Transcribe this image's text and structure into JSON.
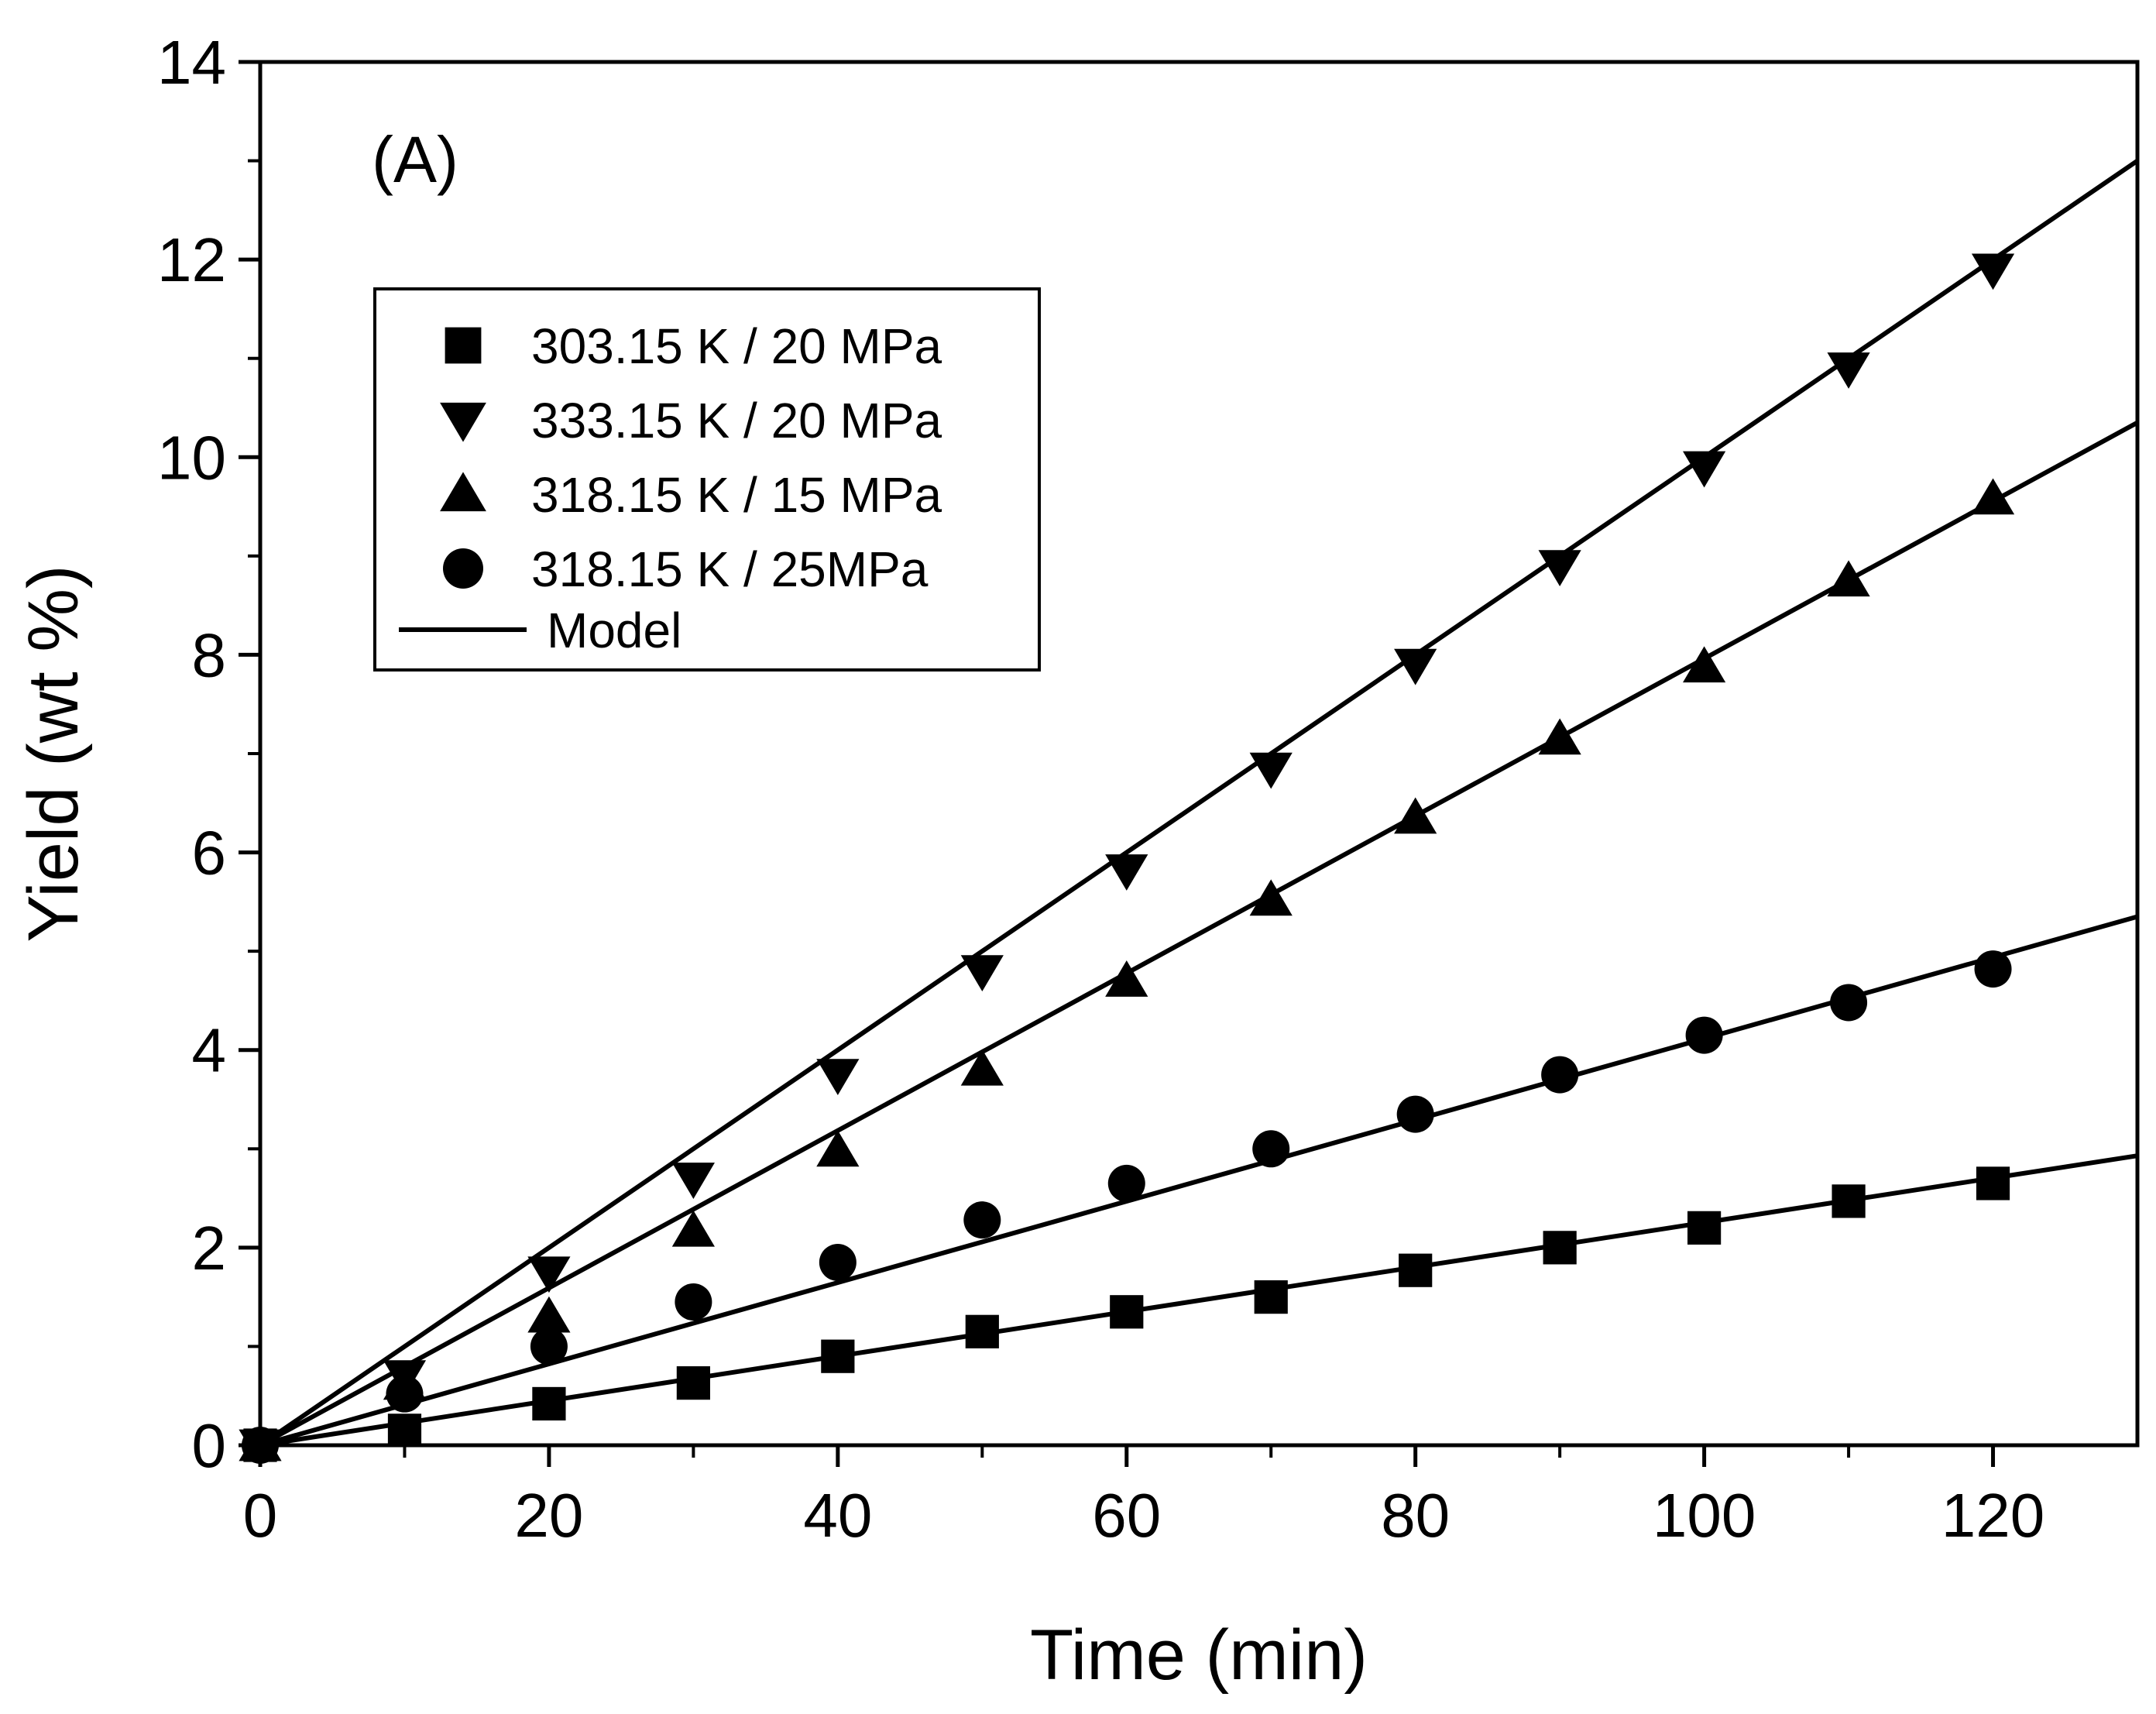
{
  "chart_data": {
    "type": "scatter",
    "panel_label": "(A)",
    "xlabel": "Time (min)",
    "ylabel": "Yield (wt %)",
    "xlim": [
      0,
      130
    ],
    "ylim": [
      0,
      14
    ],
    "xticks": [
      0,
      20,
      40,
      60,
      80,
      100,
      120
    ],
    "yticks": [
      0,
      2,
      4,
      6,
      8,
      10,
      12,
      14
    ],
    "grid": false,
    "legend_position": "upper-left",
    "legend_model_label": "Model",
    "series": [
      {
        "name": "303.15 K / 20 MPa",
        "marker": "square",
        "x": [
          0,
          10,
          20,
          30,
          40,
          50,
          60,
          70,
          80,
          90,
          100,
          110,
          120
        ],
        "y": [
          0.0,
          0.15,
          0.42,
          0.63,
          0.9,
          1.15,
          1.35,
          1.5,
          1.77,
          2.0,
          2.2,
          2.47,
          2.65
        ],
        "model": {
          "x": [
            0,
            130
          ],
          "y": [
            0.0,
            2.93
          ]
        }
      },
      {
        "name": "333.15 K / 20 MPa",
        "marker": "triangle-down",
        "x": [
          0,
          10,
          20,
          30,
          40,
          50,
          60,
          70,
          80,
          90,
          100,
          110,
          120
        ],
        "y": [
          0.0,
          0.7,
          1.75,
          2.7,
          3.75,
          4.8,
          5.82,
          6.85,
          7.9,
          8.9,
          9.9,
          10.9,
          11.9
        ],
        "model": {
          "x": [
            0,
            130
          ],
          "y": [
            0.0,
            13.0
          ]
        }
      },
      {
        "name": "318.15 K / 15 MPa",
        "marker": "triangle-up",
        "x": [
          0,
          10,
          20,
          30,
          40,
          50,
          60,
          70,
          80,
          90,
          100,
          110,
          120
        ],
        "y": [
          0.0,
          0.62,
          1.3,
          2.17,
          2.98,
          3.8,
          4.7,
          5.52,
          6.35,
          7.15,
          7.88,
          8.75,
          9.58
        ],
        "model": {
          "x": [
            0,
            130
          ],
          "y": [
            0.0,
            10.35
          ]
        }
      },
      {
        "name": "318.15 K / 25MPa",
        "marker": "circle",
        "x": [
          0,
          10,
          20,
          30,
          40,
          50,
          60,
          70,
          80,
          90,
          100,
          110,
          120
        ],
        "y": [
          0.0,
          0.52,
          1.0,
          1.45,
          1.85,
          2.28,
          2.65,
          3.0,
          3.35,
          3.75,
          4.15,
          4.48,
          4.82
        ],
        "model": {
          "x": [
            0,
            130
          ],
          "y": [
            0.0,
            5.35
          ]
        }
      }
    ]
  }
}
